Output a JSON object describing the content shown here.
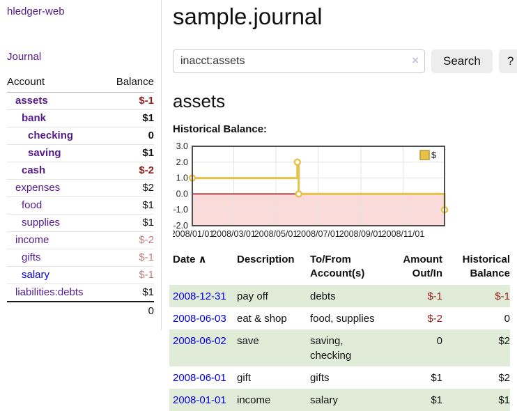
{
  "brand": {
    "label": "hledger-web"
  },
  "nav": {
    "journal_label": "Journal"
  },
  "sidebar": {
    "col_account": "Account",
    "col_balance": "Balance",
    "accounts": [
      {
        "name": "assets",
        "balance": "$-1",
        "indent": 0,
        "in_account": true,
        "balance_tone": "negative-strong"
      },
      {
        "name": "bank",
        "balance": "$1",
        "indent": 1,
        "in_account": true,
        "balance_tone": "normal"
      },
      {
        "name": "checking",
        "balance": "0",
        "indent": 2,
        "in_account": true,
        "balance_tone": "normal"
      },
      {
        "name": "saving",
        "balance": "$1",
        "indent": 2,
        "in_account": true,
        "balance_tone": "normal"
      },
      {
        "name": "cash",
        "balance": "$-2",
        "indent": 1,
        "in_account": true,
        "balance_tone": "negative-strong"
      },
      {
        "name": "expenses",
        "balance": "$2",
        "indent": 0,
        "in_account": false,
        "balance_tone": "normal"
      },
      {
        "name": "food",
        "balance": "$1",
        "indent": 1,
        "in_account": false,
        "balance_tone": "normal"
      },
      {
        "name": "supplies",
        "balance": "$1",
        "indent": 1,
        "in_account": false,
        "balance_tone": "normal"
      },
      {
        "name": "income",
        "balance": "$-2",
        "indent": 0,
        "in_account": false,
        "balance_tone": "negative-soft"
      },
      {
        "name": "gifts",
        "balance": "$-1",
        "indent": 1,
        "in_account": false,
        "balance_tone": "negative-soft"
      },
      {
        "name": "salary",
        "balance": "$-1",
        "indent": 1,
        "in_account": false,
        "balance_tone": "negative-soft",
        "link_variant": "unvisited"
      },
      {
        "name": "liabilities:debts",
        "balance": "$1",
        "indent": 0,
        "in_account": false,
        "balance_tone": "normal"
      }
    ],
    "total": "0"
  },
  "page": {
    "title": "sample.journal",
    "account_heading": "assets",
    "chart_label": "Historical Balance:"
  },
  "search": {
    "value": "inacct:assets",
    "clear_icon": "×",
    "button_label": "Search",
    "help_label": "?"
  },
  "chart_data": {
    "type": "line",
    "step": true,
    "title": "Historical Balance",
    "legend": "$",
    "legend_position": "top-right",
    "ylim": [
      -2,
      3
    ],
    "y_ticks": [
      "3.0",
      "2.0",
      "1.0",
      "0.0",
      "-1.0",
      "-2.0"
    ],
    "x_span_days": 365,
    "x_ticks": [
      {
        "label": "2008/01/01",
        "day": 0
      },
      {
        "label": "2008/03/01",
        "day": 60
      },
      {
        "label": "2008/05/01",
        "day": 121
      },
      {
        "label": "2008/07/01",
        "day": 182
      },
      {
        "label": "2008/09/01",
        "day": 244
      },
      {
        "label": "2008/11/01",
        "day": 305
      }
    ],
    "series": [
      {
        "name": "$",
        "color": "#e7c24a",
        "points": [
          {
            "date": "2008-01-01",
            "day": 0,
            "value": 1
          },
          {
            "date": "2008-06-01",
            "day": 152,
            "value": 2
          },
          {
            "date": "2008-06-03",
            "day": 154,
            "value": 0
          },
          {
            "date": "2008-12-31",
            "day": 365,
            "value": -1
          }
        ]
      }
    ],
    "zero_line_color": "#8e0000",
    "negative_fill": "#fbdada",
    "grid": true
  },
  "register": {
    "headers": {
      "date": "Date",
      "sort_indicator": "∧",
      "description": "Description",
      "accounts": "To/From Account(s)",
      "amount": "Amount Out/In",
      "balance": "Historical Balance"
    },
    "rows": [
      {
        "date": "2008-12-31",
        "description": "pay off",
        "accounts": "debts",
        "amount": "$-1",
        "balance": "$-1",
        "amount_tone": "negative",
        "balance_tone": "negative"
      },
      {
        "date": "2008-06-03",
        "description": "eat & shop",
        "accounts": "food, supplies",
        "amount": "$-2",
        "balance": "0",
        "amount_tone": "negative",
        "balance_tone": "normal"
      },
      {
        "date": "2008-06-02",
        "description": "save",
        "accounts": "saving, checking",
        "amount": "0",
        "balance": "$2",
        "amount_tone": "normal",
        "balance_tone": "normal"
      },
      {
        "date": "2008-06-01",
        "description": "gift",
        "accounts": "gifts",
        "amount": "$1",
        "balance": "$2",
        "amount_tone": "normal",
        "balance_tone": "normal"
      },
      {
        "date": "2008-01-01",
        "description": "income",
        "accounts": "salary",
        "amount": "$1",
        "balance": "$1",
        "amount_tone": "normal",
        "balance_tone": "normal"
      }
    ]
  },
  "colors": {
    "link_purple": "#551a8b",
    "link_blue": "#0000e0",
    "negative_strong": "#941d1d",
    "negative_soft": "#c57b82",
    "row_stripe_green": "#e0ecd8",
    "chart_line_gold": "#e7c24a",
    "chart_negative_pink": "#fbdada",
    "zero_line_red": "#8e0000"
  }
}
